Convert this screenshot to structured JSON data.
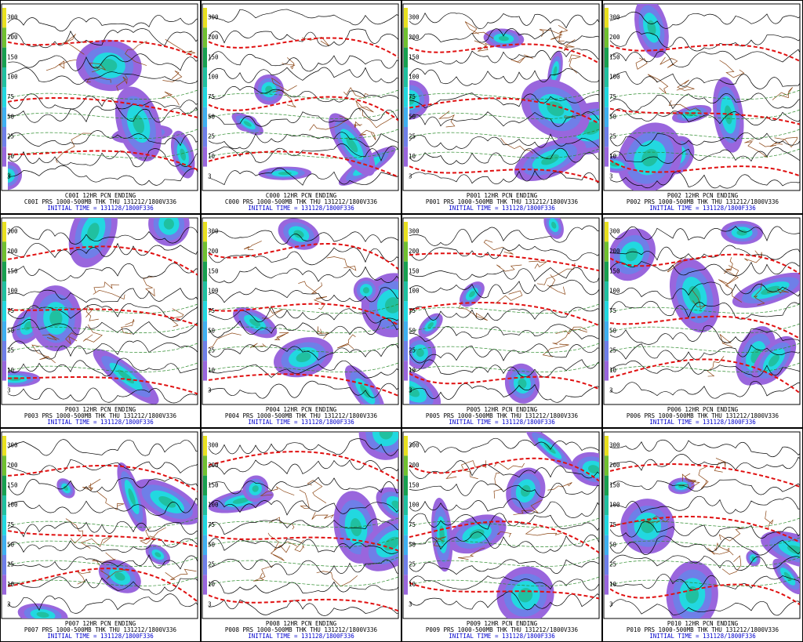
{
  "colorbar_labels": [
    "300",
    "200",
    "150",
    "100",
    "75",
    "50",
    "25",
    "10",
    "3"
  ],
  "panels": [
    {
      "top_label": "C00I 12HR PCN ENDING",
      "caption": "C00I PRS 1000-500MB THK THU 131212/1800V336",
      "initial_time": "INITIAL TIME = 131128/1800F336"
    },
    {
      "top_label": "C000 12HR PCN ENDING",
      "caption": "C000 PRS 1000-500MB THK THU 131212/1800V336",
      "initial_time": "INITIAL TIME = 131128/1800F336"
    },
    {
      "top_label": "P001 12HR PCN ENDING",
      "caption": "P001 PRS 1000-500MB THK THU 131212/1800V336",
      "initial_time": "INITIAL TIME = 131128/1800F336"
    },
    {
      "top_label": "P002 12HR PCN ENDING",
      "caption": "P002 PRS 1000-500MB THK THU 131212/1800V336",
      "initial_time": "INITIAL TIME = 131128/1800F336"
    },
    {
      "top_label": "P003 12HR PCN ENDING",
      "caption": "P003 PRS 1000-500MB THK THU 131212/1800V336",
      "initial_time": "INITIAL TIME = 131128/1800F336"
    },
    {
      "top_label": "P004 12HR PCN ENDING",
      "caption": "P004 PRS 1000-500MB THK THU 131212/1800V336",
      "initial_time": "INITIAL TIME = 131128/1800F336"
    },
    {
      "top_label": "P005 12HR PCN ENDING",
      "caption": "P005 PRS 1000-500MB THK THU 131212/1800V336",
      "initial_time": "INITIAL TIME = 131128/1800F336"
    },
    {
      "top_label": "P006 12HR PCN ENDING",
      "caption": "P006 PRS 1000-500MB THK THU 131212/1800V336",
      "initial_time": "INITIAL TIME = 131128/1800F336"
    },
    {
      "top_label": "P007 12HR PCN ENDING",
      "caption": "P007 PRS 1000-500MB THK THU 131212/1800V336",
      "initial_time": "INITIAL TIME = 131128/1800F336"
    },
    {
      "top_label": "P008 12HR PCN ENDING",
      "caption": "P008 PRS 1000-500MB THK THU 131212/1800V336",
      "initial_time": "INITIAL TIME = 131128/1800F336"
    },
    {
      "top_label": "P009 12HR PCN ENDING",
      "caption": "P009 PRS 1000-500MB THK THU 131212/1800V336",
      "initial_time": "INITIAL TIME = 131128/1800F336"
    },
    {
      "top_label": "P010 12HR PCN ENDING",
      "caption": "P010 PRS 1000-500MB THK THU 131212/1800V336",
      "initial_time": "INITIAL TIME = 131128/1800F336"
    }
  ]
}
